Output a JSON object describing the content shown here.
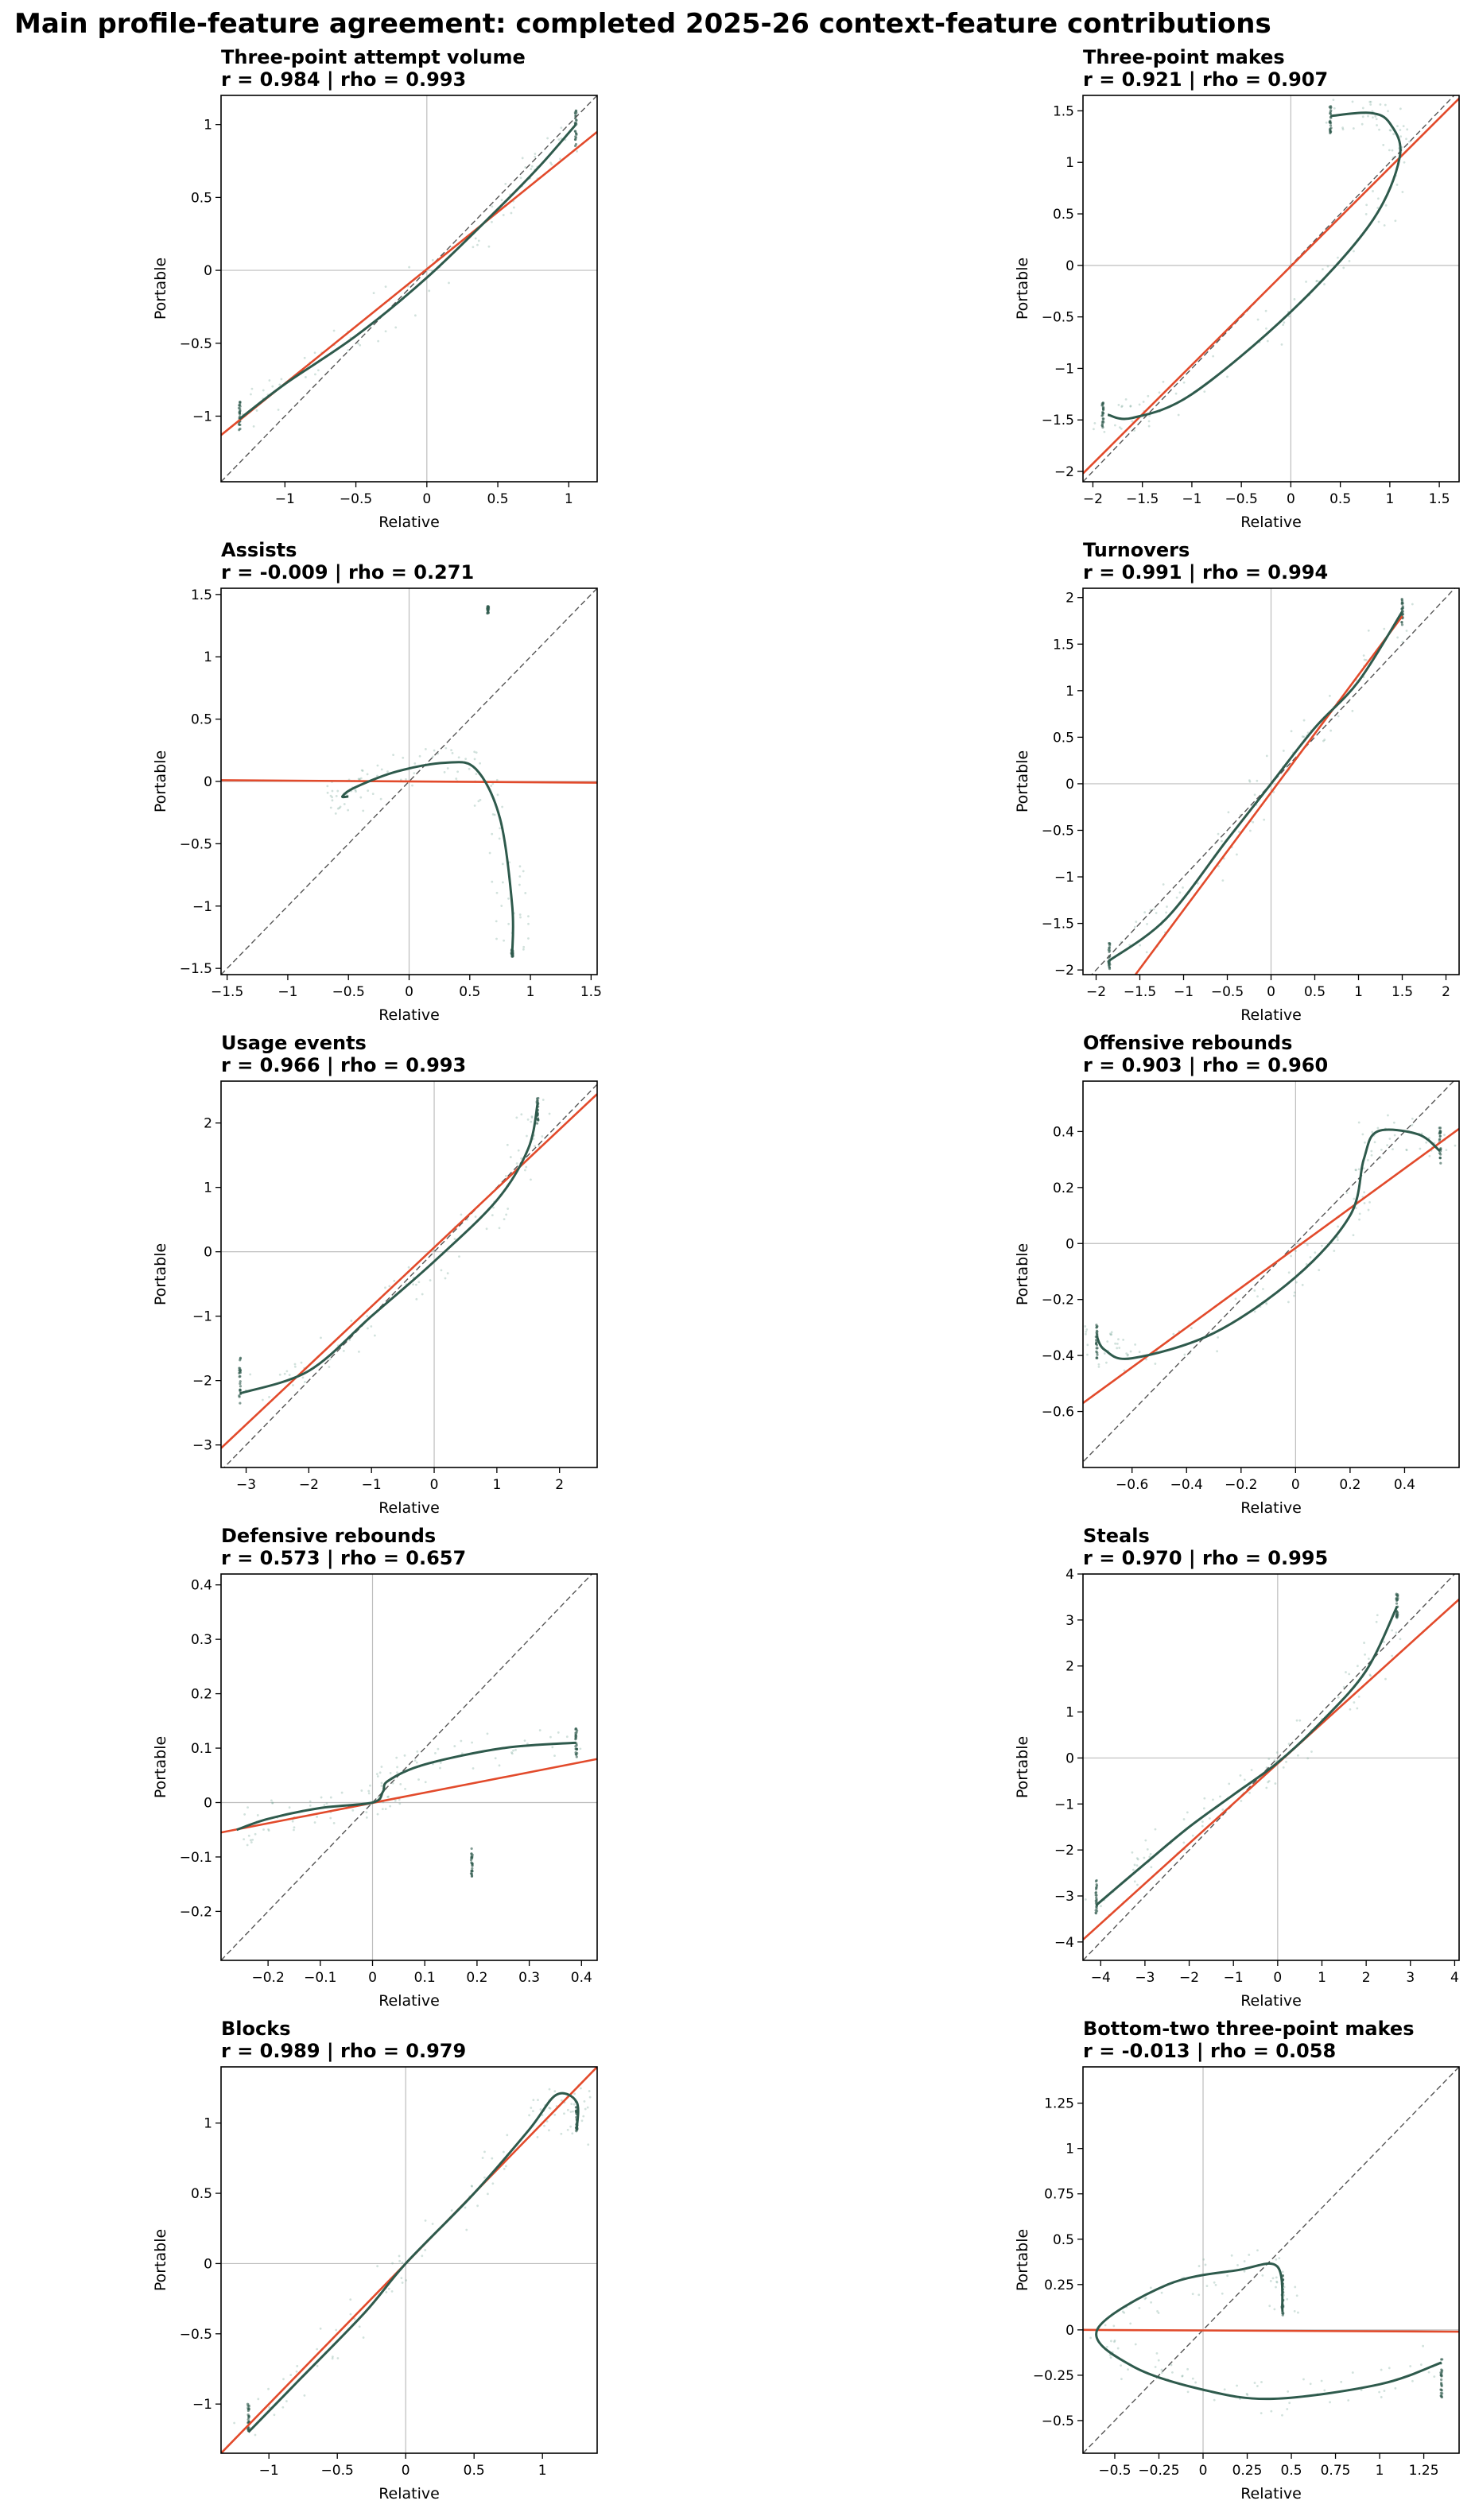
{
  "title": "Main profile-feature agreement: completed 2025-26 context-feature contributions",
  "colors": {
    "curve": "#2e5a4c",
    "fit": "#e24a2b",
    "identity": "#555555",
    "zero": "#bdbdbd",
    "points": "#7aa89b"
  },
  "chart_data": [
    {
      "type": "scatter",
      "title": "Three-point attempt volume",
      "stats": "r = 0.984 | rho = 0.993",
      "xlabel": "Relative",
      "ylabel": "Portable",
      "xlim": [
        -1.45,
        1.2
      ],
      "ylim": [
        -1.45,
        1.2
      ],
      "xticks": [
        -1.0,
        -0.5,
        0.0,
        0.5,
        1.0
      ],
      "yticks": [
        -1.0,
        -0.5,
        0.0,
        0.5,
        1.0
      ],
      "fit_line": [
        [
          -1.45,
          -1.13
        ],
        [
          1.2,
          0.95
        ]
      ],
      "smooth_curve": [
        [
          -1.32,
          -1.02
        ],
        [
          -1.0,
          -0.78
        ],
        [
          -0.5,
          -0.45
        ],
        [
          0,
          -0.05
        ],
        [
          0.5,
          0.42
        ],
        [
          0.8,
          0.72
        ],
        [
          1.05,
          1.0
        ]
      ],
      "clusters": [
        [
          -1.32,
          -1.02,
          0.1
        ],
        [
          1.05,
          0.98,
          0.1
        ]
      ]
    },
    {
      "type": "scatter",
      "title": "Three-point makes",
      "stats": "r = 0.921 | rho = 0.907",
      "xlabel": "Relative",
      "ylabel": "Portable",
      "xlim": [
        -2.1,
        1.7
      ],
      "ylim": [
        -2.1,
        1.65
      ],
      "xticks": [
        -2.0,
        -1.5,
        -1.0,
        -0.5,
        0.0,
        0.5,
        1.0,
        1.5
      ],
      "yticks": [
        -2.0,
        -1.5,
        -1.0,
        -0.5,
        0.0,
        0.5,
        1.0,
        1.5
      ],
      "fit_line": [
        [
          -2.1,
          -2.02
        ],
        [
          1.7,
          1.62
        ]
      ],
      "smooth_curve": [
        [
          -1.85,
          -1.45
        ],
        [
          -1.6,
          -1.48
        ],
        [
          -1.0,
          -1.25
        ],
        [
          0,
          -0.45
        ],
        [
          0.8,
          0.4
        ],
        [
          1.1,
          1.05
        ],
        [
          1.0,
          1.38
        ],
        [
          0.8,
          1.48
        ],
        [
          0.4,
          1.45
        ]
      ],
      "clusters": [
        [
          -1.9,
          -1.45,
          0.1
        ],
        [
          0.4,
          1.42,
          0.1
        ]
      ]
    },
    {
      "type": "scatter",
      "title": "Assists",
      "stats": "r = -0.009 | rho = 0.271",
      "xlabel": "Relative",
      "ylabel": "Portable",
      "xlim": [
        -1.55,
        1.55
      ],
      "ylim": [
        -1.55,
        1.55
      ],
      "xticks": [
        -1.5,
        -1.0,
        -0.5,
        0.0,
        0.5,
        1.0,
        1.5
      ],
      "yticks": [
        -1.5,
        -1.0,
        -0.5,
        0.0,
        0.5,
        1.0,
        1.5
      ],
      "fit_line": [
        [
          -1.55,
          0.01
        ],
        [
          1.55,
          -0.01
        ]
      ],
      "smooth_curve": [
        [
          -0.5,
          -0.12
        ],
        [
          -0.55,
          -0.12
        ],
        [
          -0.45,
          -0.05
        ],
        [
          -0.1,
          0.08
        ],
        [
          0.3,
          0.15
        ],
        [
          0.55,
          0.1
        ],
        [
          0.75,
          -0.3
        ],
        [
          0.85,
          -1.0
        ],
        [
          0.85,
          -1.38
        ]
      ],
      "clusters": [
        [
          0.85,
          -1.38,
          0.0
        ],
        [
          0.65,
          1.38,
          0.0
        ]
      ]
    },
    {
      "type": "scatter",
      "title": "Turnovers",
      "stats": "r = 0.991 | rho = 0.994",
      "xlabel": "Relative",
      "ylabel": "Portable",
      "xlim": [
        -2.15,
        2.15
      ],
      "ylim": [
        -2.05,
        2.1
      ],
      "xticks": [
        -2.0,
        -1.5,
        -1.0,
        -0.5,
        0.0,
        0.5,
        1.0,
        1.5,
        2.0
      ],
      "yticks": [
        -2.0,
        -1.5,
        -1.0,
        -0.5,
        0.0,
        0.5,
        1.0,
        1.5,
        2.0
      ],
      "fit_line": [
        [
          -1.55,
          -2.05
        ],
        [
          1.5,
          1.8
        ]
      ],
      "smooth_curve": [
        [
          -1.85,
          -1.9
        ],
        [
          -1.2,
          -1.45
        ],
        [
          -0.5,
          -0.6
        ],
        [
          0,
          0
        ],
        [
          0.5,
          0.6
        ],
        [
          1.0,
          1.1
        ],
        [
          1.5,
          1.85
        ]
      ],
      "clusters": [
        [
          -1.85,
          -1.85,
          0.1
        ],
        [
          1.5,
          1.85,
          0.1
        ]
      ]
    },
    {
      "type": "scatter",
      "title": "Usage events",
      "stats": "r = 0.966 | rho = 0.993",
      "xlabel": "Relative",
      "ylabel": "Portable",
      "xlim": [
        -3.4,
        2.6
      ],
      "ylim": [
        -3.35,
        2.65
      ],
      "xticks": [
        -3,
        -2,
        -1,
        0,
        1,
        2
      ],
      "yticks": [
        -3,
        -2,
        -1,
        0,
        1,
        2
      ],
      "fit_line": [
        [
          -3.4,
          -3.05
        ],
        [
          2.6,
          2.45
        ]
      ],
      "smooth_curve": [
        [
          -3.1,
          -2.2
        ],
        [
          -2.0,
          -1.85
        ],
        [
          -1.0,
          -1.0
        ],
        [
          0,
          -0.15
        ],
        [
          1.0,
          0.8
        ],
        [
          1.5,
          1.6
        ],
        [
          1.65,
          2.3
        ]
      ],
      "clusters": [
        [
          -3.1,
          -2.0,
          0.3
        ],
        [
          1.65,
          2.2,
          0.15
        ]
      ]
    },
    {
      "type": "scatter",
      "title": "Offensive rebounds",
      "stats": "r = 0.903 | rho = 0.960",
      "xlabel": "Relative",
      "ylabel": "Portable",
      "xlim": [
        -0.78,
        0.6
      ],
      "ylim": [
        -0.8,
        0.58
      ],
      "xticks": [
        -0.6,
        -0.4,
        -0.2,
        0.0,
        0.2,
        0.4
      ],
      "yticks": [
        -0.6,
        -0.4,
        -0.2,
        0.0,
        0.2,
        0.4
      ],
      "fit_line": [
        [
          -0.78,
          -0.57
        ],
        [
          0.6,
          0.41
        ]
      ],
      "smooth_curve": [
        [
          -0.73,
          -0.33
        ],
        [
          -0.7,
          -0.38
        ],
        [
          -0.6,
          -0.41
        ],
        [
          -0.3,
          -0.32
        ],
        [
          0.0,
          -0.12
        ],
        [
          0.2,
          0.1
        ],
        [
          0.25,
          0.3
        ],
        [
          0.3,
          0.4
        ],
        [
          0.45,
          0.39
        ],
        [
          0.53,
          0.33
        ]
      ],
      "clusters": [
        [
          -0.73,
          -0.35,
          0.05
        ],
        [
          0.53,
          0.35,
          0.05
        ]
      ]
    },
    {
      "type": "scatter",
      "title": "Defensive rebounds",
      "stats": "r = 0.573 | rho = 0.657",
      "xlabel": "Relative",
      "ylabel": "Portable",
      "xlim": [
        -0.29,
        0.43
      ],
      "ylim": [
        -0.29,
        0.42
      ],
      "xticks": [
        -0.2,
        -0.1,
        0.0,
        0.1,
        0.2,
        0.3,
        0.4
      ],
      "yticks": [
        -0.2,
        -0.1,
        0.0,
        0.1,
        0.2,
        0.3,
        0.4
      ],
      "fit_line": [
        [
          -0.29,
          -0.055
        ],
        [
          0.43,
          0.08
        ]
      ],
      "smooth_curve": [
        [
          -0.26,
          -0.05
        ],
        [
          -0.2,
          -0.03
        ],
        [
          -0.1,
          -0.01
        ],
        [
          0.0,
          0.0
        ],
        [
          0.02,
          0.02
        ],
        [
          0.03,
          0.04
        ],
        [
          0.1,
          0.07
        ],
        [
          0.25,
          0.1
        ],
        [
          0.39,
          0.11
        ]
      ],
      "clusters": [
        [
          0.39,
          0.11,
          0.02
        ],
        [
          0.19,
          -0.11,
          0.02
        ]
      ]
    },
    {
      "type": "scatter",
      "title": "Steals",
      "stats": "r = 0.970 | rho = 0.995",
      "xlabel": "Relative",
      "ylabel": "Portable",
      "xlim": [
        -4.4,
        4.1
      ],
      "ylim": [
        -4.4,
        4.0
      ],
      "xticks": [
        -4,
        -3,
        -2,
        -1,
        0,
        1,
        2,
        3,
        4
      ],
      "yticks": [
        -4,
        -3,
        -2,
        -1,
        0,
        1,
        2,
        3,
        4
      ],
      "fit_line": [
        [
          -4.4,
          -3.95
        ],
        [
          4.1,
          3.45
        ]
      ],
      "smooth_curve": [
        [
          -4.1,
          -3.2
        ],
        [
          -3.0,
          -2.3
        ],
        [
          -2.0,
          -1.5
        ],
        [
          -1.0,
          -0.8
        ],
        [
          0,
          -0.1
        ],
        [
          1.0,
          0.8
        ],
        [
          2.0,
          1.9
        ],
        [
          2.7,
          3.3
        ]
      ],
      "clusters": [
        [
          -4.1,
          -3.0,
          0.3
        ],
        [
          2.7,
          3.3,
          0.2
        ]
      ]
    },
    {
      "type": "scatter",
      "title": "Blocks",
      "stats": "r = 0.989 | rho = 0.979",
      "xlabel": "Relative",
      "ylabel": "Portable",
      "xlim": [
        -1.35,
        1.4
      ],
      "ylim": [
        -1.35,
        1.4
      ],
      "xticks": [
        -1.0,
        -0.5,
        0.0,
        0.5,
        1.0
      ],
      "yticks": [
        -1.0,
        -0.5,
        0.0,
        0.5,
        1.0
      ],
      "fit_line": [
        [
          -1.35,
          -1.35
        ],
        [
          1.4,
          1.4
        ]
      ],
      "smooth_curve": [
        [
          -1.15,
          -1.2
        ],
        [
          -0.8,
          -0.85
        ],
        [
          -0.3,
          -0.35
        ],
        [
          0,
          0
        ],
        [
          0.5,
          0.5
        ],
        [
          0.9,
          0.95
        ],
        [
          1.1,
          1.2
        ],
        [
          1.25,
          1.15
        ],
        [
          1.25,
          0.95
        ]
      ],
      "clusters": [
        [
          -1.15,
          -1.1,
          0.08
        ],
        [
          1.25,
          1.05,
          0.08
        ]
      ]
    },
    {
      "type": "scatter",
      "title": "Bottom-two three-point makes",
      "stats": "r = -0.013 | rho = 0.058",
      "xlabel": "Relative",
      "ylabel": "Portable",
      "xlim": [
        -0.68,
        1.45
      ],
      "ylim": [
        -0.68,
        1.45
      ],
      "xticks": [
        -0.5,
        -0.25,
        0.0,
        0.25,
        0.5,
        0.75,
        1.0,
        1.25
      ],
      "yticks": [
        -0.5,
        -0.25,
        0.0,
        0.25,
        0.5,
        0.75,
        1.0,
        1.25
      ],
      "fit_line": [
        [
          -0.68,
          0.0
        ],
        [
          1.45,
          -0.01
        ]
      ],
      "smooth_curve": [
        [
          0.45,
          0.1
        ],
        [
          0.42,
          0.35
        ],
        [
          0.2,
          0.33
        ],
        [
          -0.2,
          0.25
        ],
        [
          -0.6,
          0.0
        ],
        [
          -0.4,
          -0.2
        ],
        [
          0.0,
          -0.33
        ],
        [
          0.4,
          -0.38
        ],
        [
          1.0,
          -0.3
        ],
        [
          1.35,
          -0.18
        ]
      ],
      "clusters": [
        [
          1.35,
          -0.25,
          0.1
        ],
        [
          0.45,
          0.2,
          0.1
        ]
      ]
    }
  ]
}
